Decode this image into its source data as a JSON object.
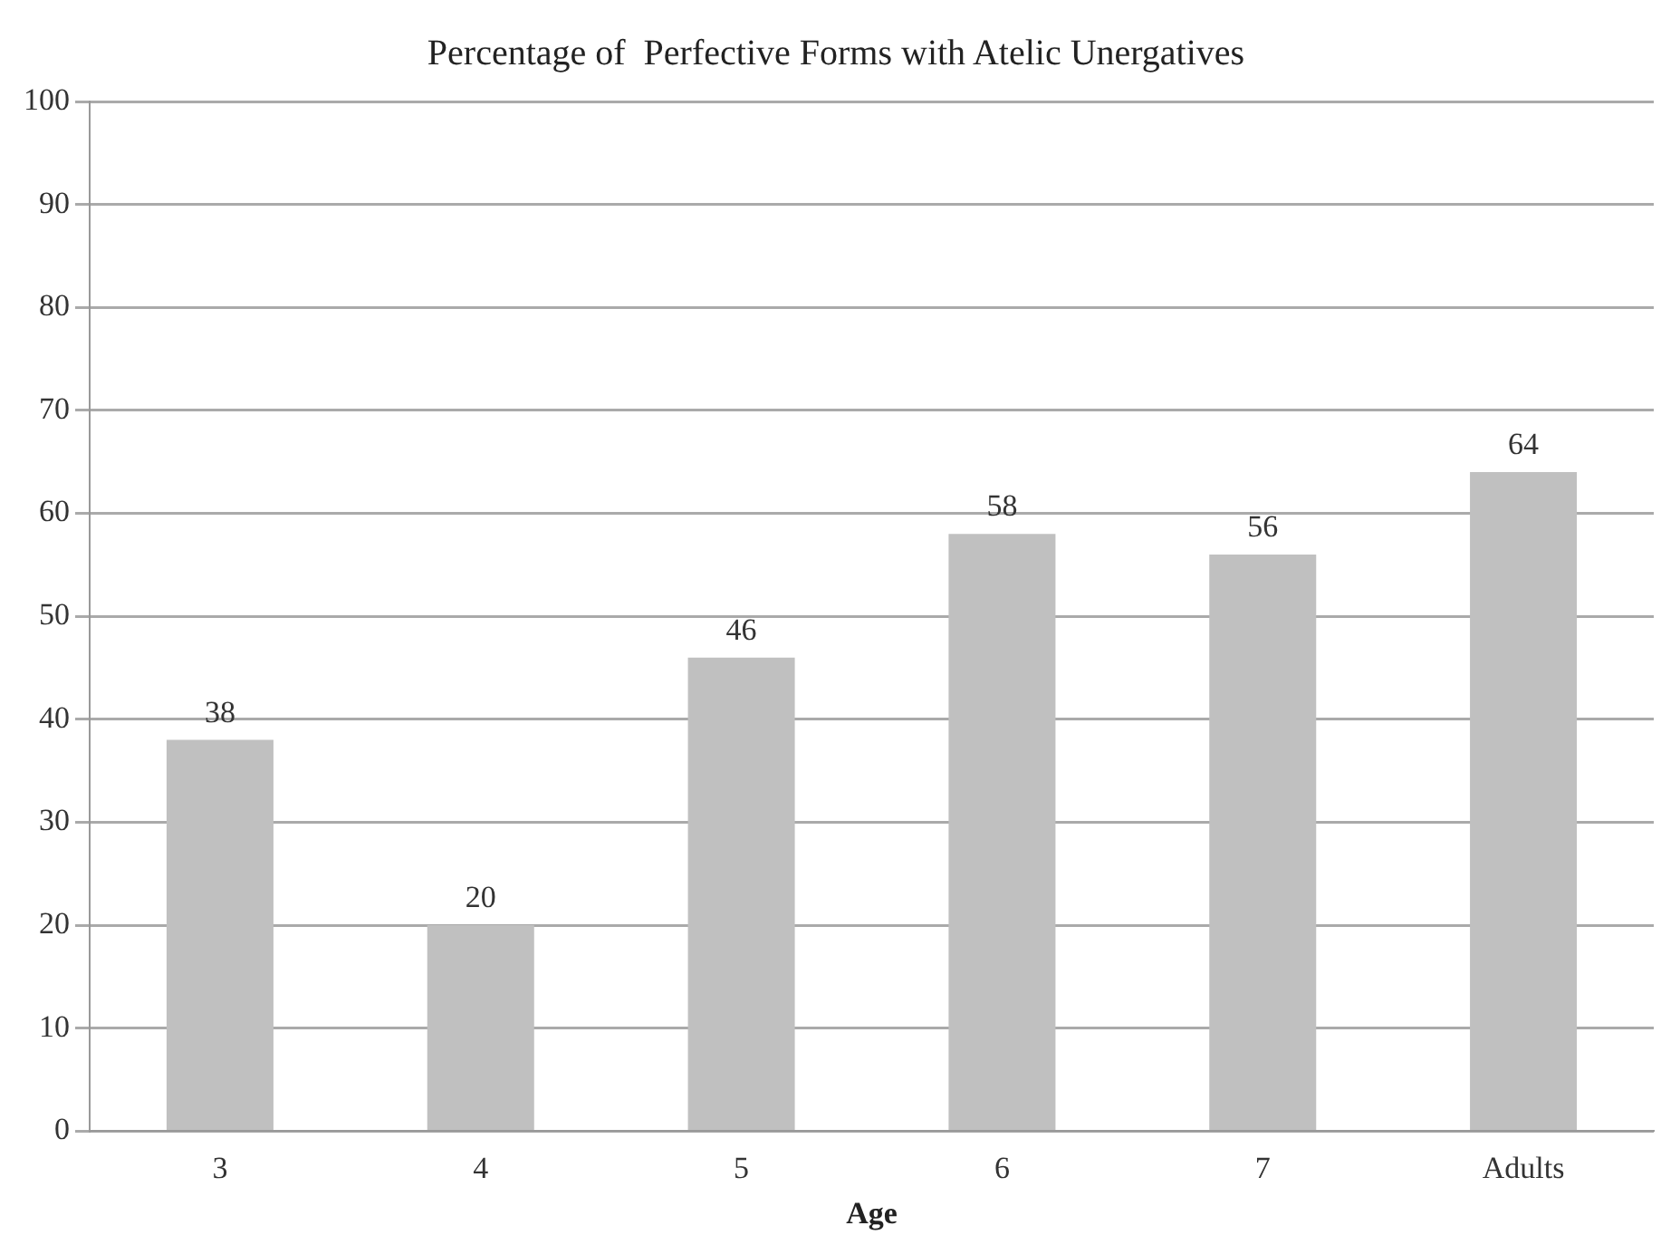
{
  "chart_data": {
    "type": "bar",
    "title": "Percentage of  Perfective Forms with Atelic Unergatives",
    "xlabel": "Age",
    "categories": [
      "3",
      "4",
      "5",
      "6",
      "7",
      "Adults"
    ],
    "values": [
      38,
      20,
      46,
      58,
      56,
      64
    ],
    "color": "#c0c0c0",
    "ylim": [
      0,
      100
    ],
    "yticks": [
      0,
      10,
      20,
      30,
      40,
      50,
      60,
      70,
      80,
      90,
      100
    ],
    "grid": "y",
    "legend": false,
    "data_labels": true
  }
}
